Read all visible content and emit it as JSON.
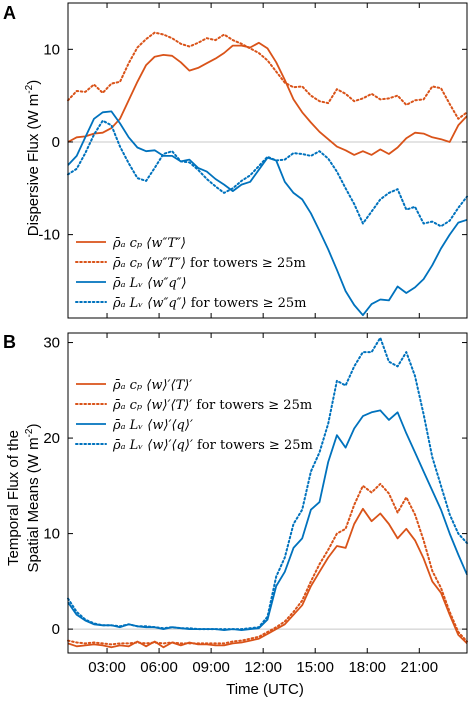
{
  "chart_data": [
    {
      "panel_label": "A",
      "type": "line",
      "ylabel": "Dispersive Flux (W m",
      "ylabel_sup": "-2",
      "ylabel_close": ")",
      "ylim": [
        -19,
        15
      ],
      "yticks": [
        -10,
        0,
        10
      ],
      "xlim": [
        0.75,
        23.75
      ],
      "legend_position": "lower-left",
      "series": [
        {
          "name": "ρ̄ₐ cₚ ⟨w″T″⟩",
          "legend_suffix": "",
          "color": "#d95319",
          "style": "solid",
          "x": [
            0.75,
            1.25,
            1.75,
            2.25,
            2.75,
            3.25,
            3.75,
            4.25,
            4.75,
            5.25,
            5.75,
            6.25,
            6.75,
            7.25,
            7.75,
            8.25,
            8.75,
            9.25,
            9.75,
            10.25,
            10.75,
            11.25,
            11.75,
            12.25,
            12.75,
            13.25,
            13.75,
            14.25,
            14.75,
            15.25,
            15.75,
            16.25,
            16.75,
            17.25,
            17.75,
            18.25,
            18.75,
            19.25,
            19.75,
            20.25,
            20.75,
            21.25,
            21.75,
            22.25,
            22.75,
            23.25,
            23.75
          ],
          "y": [
            0.0,
            0.5,
            0.6,
            0.9,
            1.0,
            1.5,
            2.5,
            4.5,
            6.5,
            8.3,
            9.2,
            9.4,
            9.3,
            8.6,
            7.7,
            8.0,
            8.5,
            9.0,
            9.6,
            10.4,
            10.4,
            10.2,
            10.7,
            10.1,
            8.6,
            6.7,
            4.6,
            3.2,
            2.1,
            1.1,
            0.3,
            -0.5,
            -0.9,
            -1.4,
            -1.0,
            -1.4,
            -0.8,
            -1.3,
            -0.6,
            0.4,
            1.0,
            0.9,
            0.5,
            0.3,
            0.0,
            1.8,
            2.8
          ]
        },
        {
          "name": "ρ̄ₐ cₚ ⟨w″T″⟩",
          "legend_suffix": " for towers ≥ 25m",
          "color": "#d95319",
          "style": "dotted",
          "x": [
            0.75,
            1.25,
            1.75,
            2.25,
            2.75,
            3.25,
            3.75,
            4.25,
            4.75,
            5.25,
            5.75,
            6.25,
            6.75,
            7.25,
            7.75,
            8.25,
            8.75,
            9.25,
            9.75,
            10.25,
            10.75,
            11.25,
            11.75,
            12.25,
            12.75,
            13.25,
            13.75,
            14.25,
            14.75,
            15.25,
            15.75,
            16.25,
            16.75,
            17.25,
            17.75,
            18.25,
            18.75,
            19.25,
            19.75,
            20.25,
            20.75,
            21.25,
            21.75,
            22.25,
            22.75,
            23.25,
            23.75
          ],
          "y": [
            4.5,
            5.5,
            5.4,
            6.2,
            5.3,
            6.3,
            6.5,
            8.5,
            10.2,
            11.1,
            11.8,
            11.6,
            11.2,
            10.6,
            10.3,
            10.7,
            11.2,
            11.0,
            11.6,
            11.0,
            10.6,
            10.1,
            9.6,
            8.8,
            7.6,
            6.4,
            5.9,
            6.0,
            5.0,
            4.4,
            4.2,
            5.7,
            5.2,
            4.4,
            4.7,
            5.2,
            4.6,
            4.7,
            5.0,
            4.0,
            4.5,
            4.6,
            6.0,
            5.8,
            4.1,
            2.5,
            3.2
          ]
        },
        {
          "name": "ρ̄ₐ Lᵥ ⟨w″q″⟩",
          "legend_suffix": "",
          "color": "#0072bd",
          "style": "solid",
          "x": [
            0.75,
            1.25,
            1.75,
            2.25,
            2.75,
            3.25,
            3.75,
            4.25,
            4.75,
            5.25,
            5.75,
            6.25,
            6.75,
            7.25,
            7.75,
            8.25,
            8.75,
            9.25,
            9.75,
            10.25,
            10.75,
            11.25,
            11.75,
            12.25,
            12.75,
            13.25,
            13.75,
            14.25,
            14.75,
            15.25,
            15.75,
            16.25,
            16.75,
            17.25,
            17.75,
            18.25,
            18.75,
            19.25,
            19.75,
            20.25,
            20.75,
            21.25,
            21.75,
            22.25,
            22.75,
            23.25,
            23.75
          ],
          "y": [
            -2.5,
            -1.5,
            0.5,
            2.5,
            3.2,
            3.3,
            2.0,
            0.5,
            -0.6,
            -1.0,
            -0.9,
            -1.5,
            -1.5,
            -2.1,
            -1.9,
            -2.8,
            -3.2,
            -4.0,
            -4.6,
            -5.3,
            -4.6,
            -4.3,
            -3.0,
            -1.7,
            -2.0,
            -4.3,
            -5.5,
            -6.2,
            -7.7,
            -9.6,
            -11.6,
            -13.8,
            -16.1,
            -17.6,
            -18.7,
            -17.5,
            -17.0,
            -17.1,
            -15.6,
            -16.3,
            -15.7,
            -14.8,
            -13.3,
            -11.5,
            -10.0,
            -8.7,
            -8.4
          ]
        },
        {
          "name": "ρ̄ₐ Lᵥ ⟨w″q″⟩",
          "legend_suffix": " for towers ≥ 25m",
          "color": "#0072bd",
          "style": "dotted",
          "x": [
            0.75,
            1.25,
            1.75,
            2.25,
            2.75,
            3.25,
            3.75,
            4.25,
            4.75,
            5.25,
            5.75,
            6.25,
            6.75,
            7.25,
            7.75,
            8.25,
            8.75,
            9.25,
            9.75,
            10.25,
            10.75,
            11.25,
            11.75,
            12.25,
            12.75,
            13.25,
            13.75,
            14.25,
            14.75,
            15.25,
            15.75,
            16.25,
            16.75,
            17.25,
            17.75,
            18.25,
            18.75,
            19.25,
            19.75,
            20.25,
            20.75,
            21.25,
            21.75,
            22.25,
            22.75,
            23.25,
            23.75
          ],
          "y": [
            -3.5,
            -2.9,
            -1.2,
            0.8,
            2.3,
            1.8,
            -0.5,
            -2.3,
            -3.9,
            -4.2,
            -2.8,
            -1.3,
            -1.0,
            -2.1,
            -2.2,
            -3.0,
            -4.0,
            -4.8,
            -5.5,
            -5.0,
            -4.2,
            -3.6,
            -2.6,
            -1.6,
            -2.0,
            -1.9,
            -1.2,
            -1.3,
            -1.5,
            -1.0,
            -1.8,
            -3.2,
            -5.0,
            -6.7,
            -8.8,
            -7.5,
            -6.2,
            -5.5,
            -5.1,
            -7.3,
            -7.0,
            -8.8,
            -8.6,
            -9.1,
            -8.5,
            -7.1,
            -5.9
          ]
        }
      ]
    },
    {
      "panel_label": "B",
      "type": "line",
      "ylabel_line1": "Temporal Flux of the",
      "ylabel": "Spatial Means (W m",
      "ylabel_sup": "-2",
      "ylabel_close": ")",
      "ylim": [
        -2.5,
        31
      ],
      "yticks": [
        0,
        10,
        20,
        30
      ],
      "xlim": [
        0.75,
        23.75
      ],
      "xticks": [
        3,
        6,
        9,
        12,
        15,
        18,
        21
      ],
      "xtick_labels": [
        "03:00",
        "06:00",
        "09:00",
        "12:00",
        "15:00",
        "18:00",
        "21:00"
      ],
      "xlabel": "Time (UTC)",
      "legend_position": "upper-left",
      "series": [
        {
          "name": "ρ̄ₐ cₚ ⟨w⟩′⟨T⟩′",
          "legend_suffix": "",
          "color": "#d95319",
          "style": "solid",
          "x": [
            0.75,
            1.25,
            1.75,
            2.25,
            2.75,
            3.25,
            3.75,
            4.25,
            4.75,
            5.25,
            5.75,
            6.25,
            6.75,
            7.25,
            7.75,
            8.25,
            8.75,
            9.25,
            9.75,
            10.25,
            10.75,
            11.25,
            11.75,
            12.25,
            12.75,
            13.25,
            13.75,
            14.25,
            14.75,
            15.25,
            15.75,
            16.25,
            16.75,
            17.25,
            17.75,
            18.25,
            18.75,
            19.25,
            19.75,
            20.25,
            20.75,
            21.25,
            21.75,
            22.25,
            22.75,
            23.25,
            23.75
          ],
          "y": [
            -1.5,
            -1.8,
            -1.7,
            -1.6,
            -1.7,
            -1.9,
            -1.7,
            -1.8,
            -1.3,
            -1.8,
            -1.3,
            -1.9,
            -1.4,
            -1.7,
            -1.4,
            -1.6,
            -1.6,
            -1.7,
            -1.7,
            -1.5,
            -1.4,
            -1.2,
            -1.0,
            -0.5,
            0.0,
            0.5,
            1.5,
            2.5,
            4.5,
            6.0,
            7.5,
            8.7,
            8.5,
            11.0,
            12.6,
            11.3,
            12.1,
            11.0,
            9.5,
            10.5,
            9.3,
            7.4,
            5.0,
            3.8,
            1.5,
            -0.6,
            -1.5
          ]
        },
        {
          "name": "ρ̄ₐ cₚ ⟨w⟩′⟨T⟩′",
          "legend_suffix": " for towers ≥ 25m",
          "color": "#d95319",
          "style": "dotted",
          "x": [
            0.75,
            1.25,
            1.75,
            2.25,
            2.75,
            3.25,
            3.75,
            4.25,
            4.75,
            5.25,
            5.75,
            6.25,
            6.75,
            7.25,
            7.75,
            8.25,
            8.75,
            9.25,
            9.75,
            10.25,
            10.75,
            11.25,
            11.75,
            12.25,
            12.75,
            13.25,
            13.75,
            14.25,
            14.75,
            15.25,
            15.75,
            16.25,
            16.75,
            17.25,
            17.75,
            18.25,
            18.75,
            19.25,
            19.75,
            20.25,
            20.75,
            21.25,
            21.75,
            22.25,
            22.75,
            23.25,
            23.75
          ],
          "y": [
            -1.2,
            -1.4,
            -1.5,
            -1.4,
            -1.5,
            -1.6,
            -1.5,
            -1.5,
            -1.4,
            -1.5,
            -1.4,
            -1.5,
            -1.4,
            -1.5,
            -1.5,
            -1.5,
            -1.5,
            -1.5,
            -1.5,
            -1.3,
            -1.2,
            -1.0,
            -0.8,
            -0.3,
            0.2,
            0.8,
            1.8,
            3.0,
            5.0,
            6.8,
            8.3,
            10.0,
            10.5,
            13.0,
            15.0,
            14.3,
            15.2,
            14.2,
            12.2,
            13.8,
            12.0,
            9.3,
            6.1,
            4.3,
            1.8,
            -0.3,
            -1.3
          ]
        },
        {
          "name": "ρ̄ₐ Lᵥ ⟨w⟩′⟨q⟩′",
          "legend_suffix": "",
          "color": "#0072bd",
          "style": "solid",
          "x": [
            0.75,
            1.25,
            1.75,
            2.25,
            2.75,
            3.25,
            3.75,
            4.25,
            4.75,
            5.25,
            5.75,
            6.25,
            6.75,
            7.25,
            7.75,
            8.25,
            8.75,
            9.25,
            9.75,
            10.25,
            10.75,
            11.25,
            11.75,
            12.25,
            12.75,
            13.25,
            13.75,
            14.25,
            14.75,
            15.25,
            15.75,
            16.25,
            16.75,
            17.25,
            17.75,
            18.25,
            18.75,
            19.25,
            19.75,
            20.25,
            20.75,
            21.25,
            21.75,
            22.25,
            22.75,
            23.25,
            23.75
          ],
          "y": [
            2.8,
            1.5,
            0.9,
            0.5,
            0.4,
            0.4,
            0.2,
            0.5,
            0.3,
            0.2,
            0.2,
            0.0,
            0.2,
            0.1,
            0.0,
            0.0,
            0.0,
            0.0,
            -0.1,
            0.0,
            -0.1,
            0.0,
            0.1,
            1.0,
            4.5,
            6.0,
            8.5,
            9.5,
            12.5,
            13.3,
            17.5,
            20.3,
            19.0,
            21.0,
            22.3,
            22.7,
            22.9,
            21.9,
            22.7,
            20.5,
            18.5,
            16.5,
            14.5,
            12.5,
            10.0,
            7.8,
            5.7
          ]
        },
        {
          "name": "ρ̄ₐ Lᵥ ⟨w⟩′⟨q⟩′",
          "legend_suffix": " for towers ≥ 25m",
          "color": "#0072bd",
          "style": "dotted",
          "x": [
            0.75,
            1.25,
            1.75,
            2.25,
            2.75,
            3.25,
            3.75,
            4.25,
            4.75,
            5.25,
            5.75,
            6.25,
            6.75,
            7.25,
            7.75,
            8.25,
            8.75,
            9.25,
            9.75,
            10.25,
            10.75,
            11.25,
            11.75,
            12.25,
            12.75,
            13.25,
            13.75,
            14.25,
            14.75,
            15.25,
            15.75,
            16.25,
            16.75,
            17.25,
            17.75,
            18.25,
            18.75,
            19.25,
            19.75,
            20.25,
            20.75,
            21.25,
            21.75,
            22.25,
            22.75,
            23.25,
            23.75
          ],
          "y": [
            3.2,
            1.8,
            1.0,
            0.6,
            0.4,
            0.4,
            0.3,
            0.5,
            0.3,
            0.3,
            0.2,
            0.1,
            0.2,
            0.1,
            0.1,
            0.0,
            0.0,
            0.0,
            0.0,
            0.0,
            0.0,
            0.1,
            0.2,
            1.3,
            5.5,
            7.5,
            11.0,
            12.5,
            16.5,
            18.5,
            21.5,
            26.0,
            25.5,
            27.5,
            29.0,
            29.0,
            30.5,
            28.0,
            27.5,
            29.0,
            26.5,
            22.5,
            18.0,
            15.0,
            12.0,
            10.0,
            9.0
          ]
        }
      ]
    }
  ],
  "colors": {
    "orange": "#d95319",
    "blue": "#0072bd",
    "zero_line": "#c8c8c8"
  }
}
